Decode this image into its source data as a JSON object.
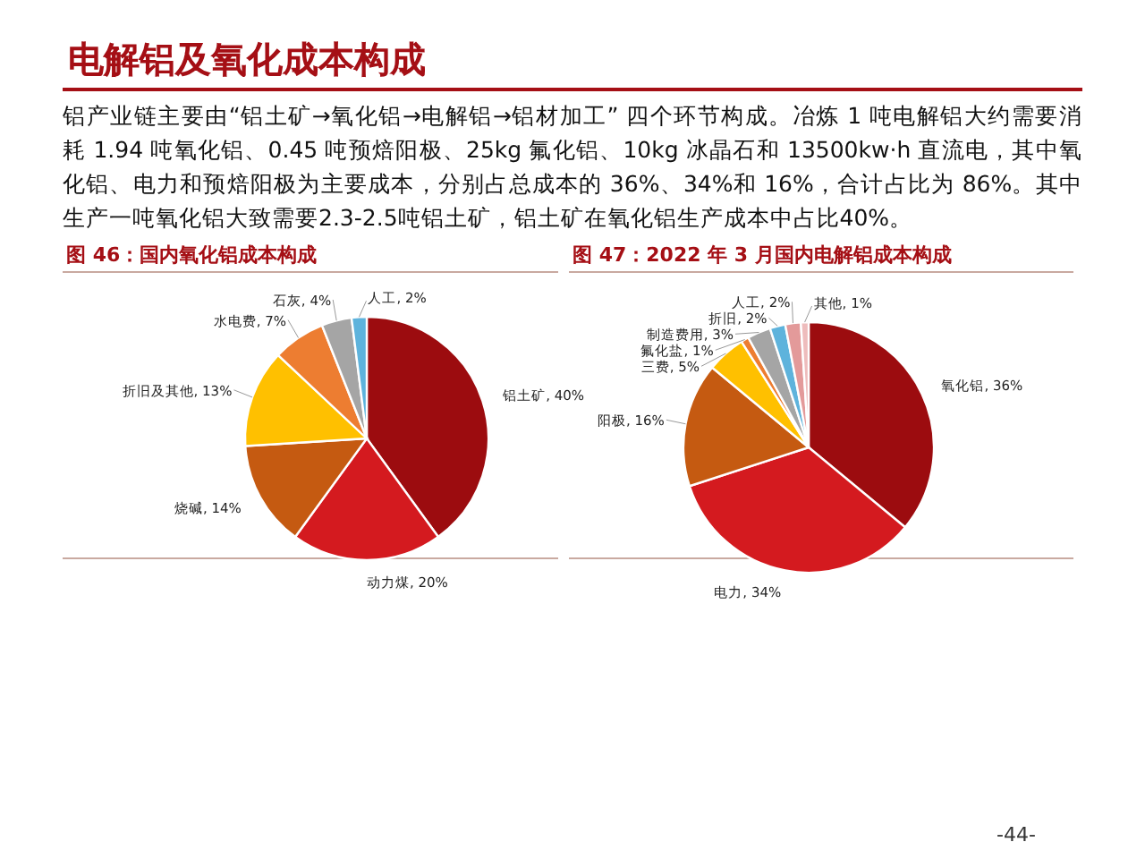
{
  "chart_data": [
    {
      "type": "other",
      "title": "电解铝及氧化成本构成",
      "annotations": [
        "铝产业链主要由“铝土矿→氧化铝→电解铝→铝材加工” 四个环节构成。冶炼 1 吨电解铝大约需要消耗 1.94 吨氧化铝、0.45 吨预焙阳极、25kg 氟化铝、10kg 冰晶石和 13500kw·h 直流电，其中氧化铝、电力和预焙阳极为主要成本，分别占总成本的 36%、34%和 16%，合计占比为 86%。其中生产一吨氧化铝大致需要2.3-2.5吨铝土矿，铝土矿在氧化铝生产成本中占比40%。",
        "-44-"
      ]
    },
    {
      "type": "pie",
      "title": "图 46：国内氧化铝成本构成",
      "categories": [
        "铝土矿",
        "动力煤",
        "烧碱",
        "折旧及其他",
        "水电费",
        "石灰",
        "人工"
      ],
      "values": [
        40,
        20,
        14,
        13,
        7,
        4,
        2
      ],
      "value_labels": [
        "40%",
        "20%",
        "14%",
        "13%",
        "7%",
        "4%",
        "2%"
      ],
      "colors": [
        "#9c0c0f",
        "#d41a1f",
        "#c55a11",
        "#ffc000",
        "#ed7d31",
        "#a5a5a5",
        "#5eb3dc"
      ]
    },
    {
      "type": "pie",
      "title": "图 47：2022 年 3 月国内电解铝成本构成",
      "categories": [
        "氧化铝",
        "电力",
        "阳极",
        "三费",
        "氟化盐",
        "制造费用",
        "折旧",
        "人工",
        "其他"
      ],
      "values": [
        36,
        34,
        16,
        5,
        1,
        3,
        2,
        2,
        1
      ],
      "value_labels": [
        "36%",
        "34%",
        "16%",
        "5%",
        "1%",
        "3%",
        "2%",
        "2%",
        "1%"
      ],
      "colors": [
        "#9c0c0f",
        "#d41a1f",
        "#c55a11",
        "#ffc000",
        "#ed7d31",
        "#a5a5a5",
        "#5eb3dc",
        "#e39a9a",
        "#eebcbc"
      ]
    }
  ]
}
